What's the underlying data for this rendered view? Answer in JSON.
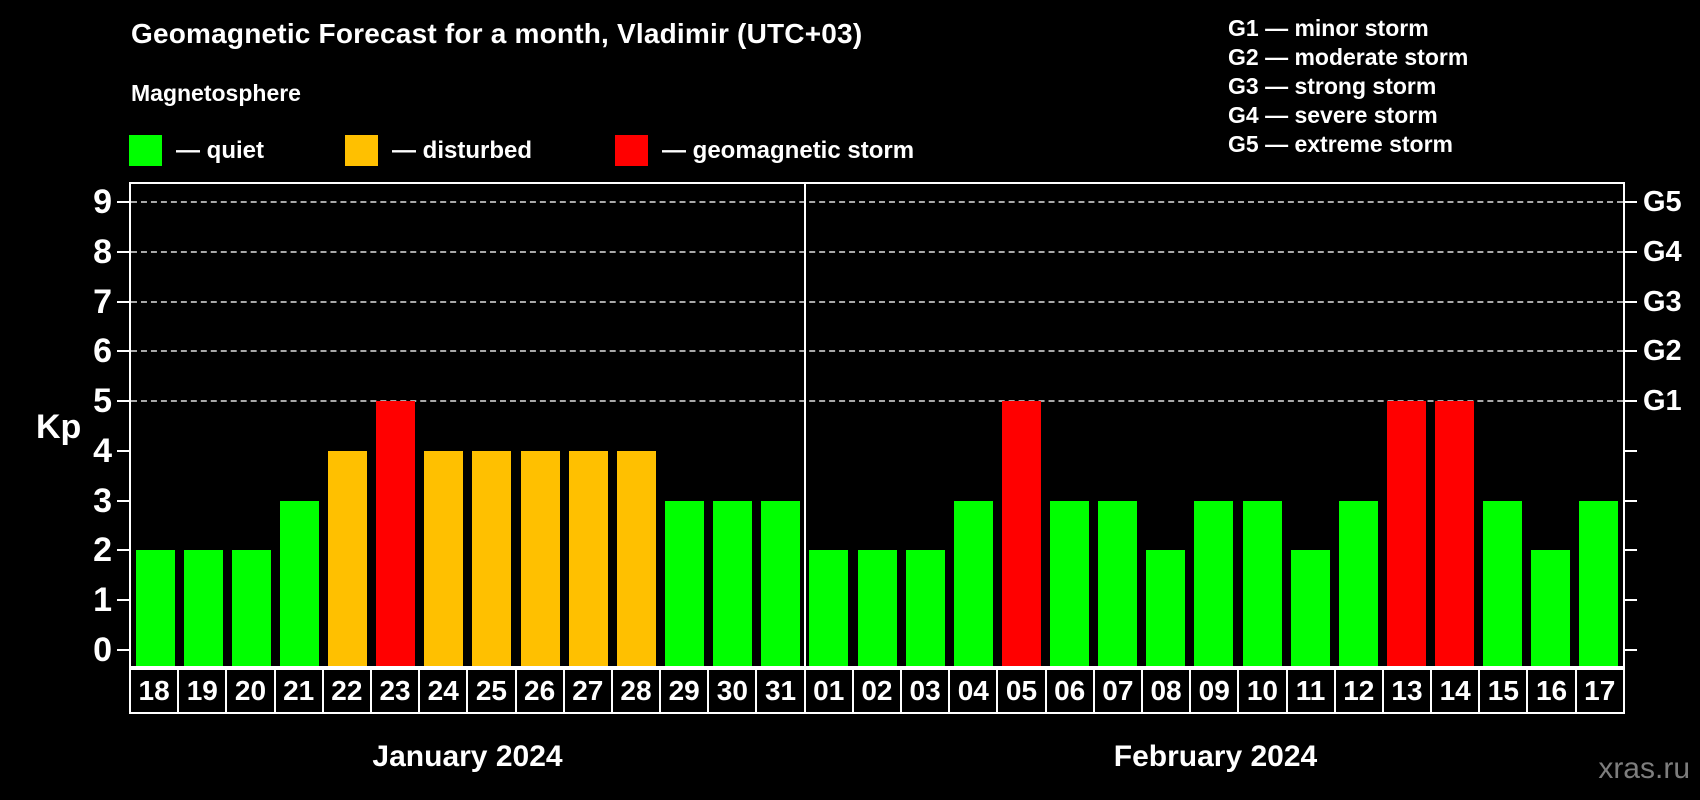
{
  "title": "Geomagnetic Forecast for a month, Vladimir (UTC+03)",
  "subtitle": "Magnetosphere",
  "legend": {
    "quiet_label": "— quiet",
    "disturbed_label": "— disturbed",
    "storm_label": "— geomagnetic storm"
  },
  "g_scale_legend": [
    "G1 — minor storm",
    "G2 — moderate storm",
    "G3 — strong storm",
    "G4 — severe storm",
    "G5 — extreme storm"
  ],
  "kp_axis_label": "Kp",
  "watermark": "xras.ru",
  "colors": {
    "quiet": "#00ff00",
    "disturbed": "#ffc000",
    "storm": "#ff0000",
    "axis": "#ffffff",
    "grid": "#a8a8a8",
    "watermark": "#7d7d7d",
    "background": "#000000"
  },
  "chart_data": {
    "type": "bar",
    "ylabel": "Kp",
    "ylim": [
      0,
      9
    ],
    "yticks": [
      0,
      1,
      2,
      3,
      4,
      5,
      6,
      7,
      8,
      9
    ],
    "gridlines_at": [
      5,
      6,
      7,
      8,
      9
    ],
    "grid": "dashed horizontal at G-storm levels only",
    "legend_position": "top",
    "right_axis": [
      {
        "kp": 5,
        "label": "G1"
      },
      {
        "kp": 6,
        "label": "G2"
      },
      {
        "kp": 7,
        "label": "G3"
      },
      {
        "kp": 8,
        "label": "G4"
      },
      {
        "kp": 9,
        "label": "G5"
      }
    ],
    "months": [
      {
        "label": "January 2024",
        "days": [
          {
            "day": "18",
            "kp": 2,
            "status": "quiet"
          },
          {
            "day": "19",
            "kp": 2,
            "status": "quiet"
          },
          {
            "day": "20",
            "kp": 2,
            "status": "quiet"
          },
          {
            "day": "21",
            "kp": 3,
            "status": "quiet"
          },
          {
            "day": "22",
            "kp": 4,
            "status": "disturbed"
          },
          {
            "day": "23",
            "kp": 5,
            "status": "storm"
          },
          {
            "day": "24",
            "kp": 4,
            "status": "disturbed"
          },
          {
            "day": "25",
            "kp": 4,
            "status": "disturbed"
          },
          {
            "day": "26",
            "kp": 4,
            "status": "disturbed"
          },
          {
            "day": "27",
            "kp": 4,
            "status": "disturbed"
          },
          {
            "day": "28",
            "kp": 4,
            "status": "disturbed"
          },
          {
            "day": "29",
            "kp": 3,
            "status": "quiet"
          },
          {
            "day": "30",
            "kp": 3,
            "status": "quiet"
          },
          {
            "day": "31",
            "kp": 3,
            "status": "quiet"
          }
        ]
      },
      {
        "label": "February 2024",
        "days": [
          {
            "day": "01",
            "kp": 2,
            "status": "quiet"
          },
          {
            "day": "02",
            "kp": 2,
            "status": "quiet"
          },
          {
            "day": "03",
            "kp": 2,
            "status": "quiet"
          },
          {
            "day": "04",
            "kp": 3,
            "status": "quiet"
          },
          {
            "day": "05",
            "kp": 5,
            "status": "storm"
          },
          {
            "day": "06",
            "kp": 3,
            "status": "quiet"
          },
          {
            "day": "07",
            "kp": 3,
            "status": "quiet"
          },
          {
            "day": "08",
            "kp": 2,
            "status": "quiet"
          },
          {
            "day": "09",
            "kp": 3,
            "status": "quiet"
          },
          {
            "day": "10",
            "kp": 3,
            "status": "quiet"
          },
          {
            "day": "11",
            "kp": 2,
            "status": "quiet"
          },
          {
            "day": "12",
            "kp": 3,
            "status": "quiet"
          },
          {
            "day": "13",
            "kp": 5,
            "status": "storm"
          },
          {
            "day": "14",
            "kp": 5,
            "status": "storm"
          },
          {
            "day": "15",
            "kp": 3,
            "status": "quiet"
          },
          {
            "day": "16",
            "kp": 2,
            "status": "quiet"
          },
          {
            "day": "17",
            "kp": 3,
            "status": "quiet"
          }
        ]
      }
    ]
  }
}
